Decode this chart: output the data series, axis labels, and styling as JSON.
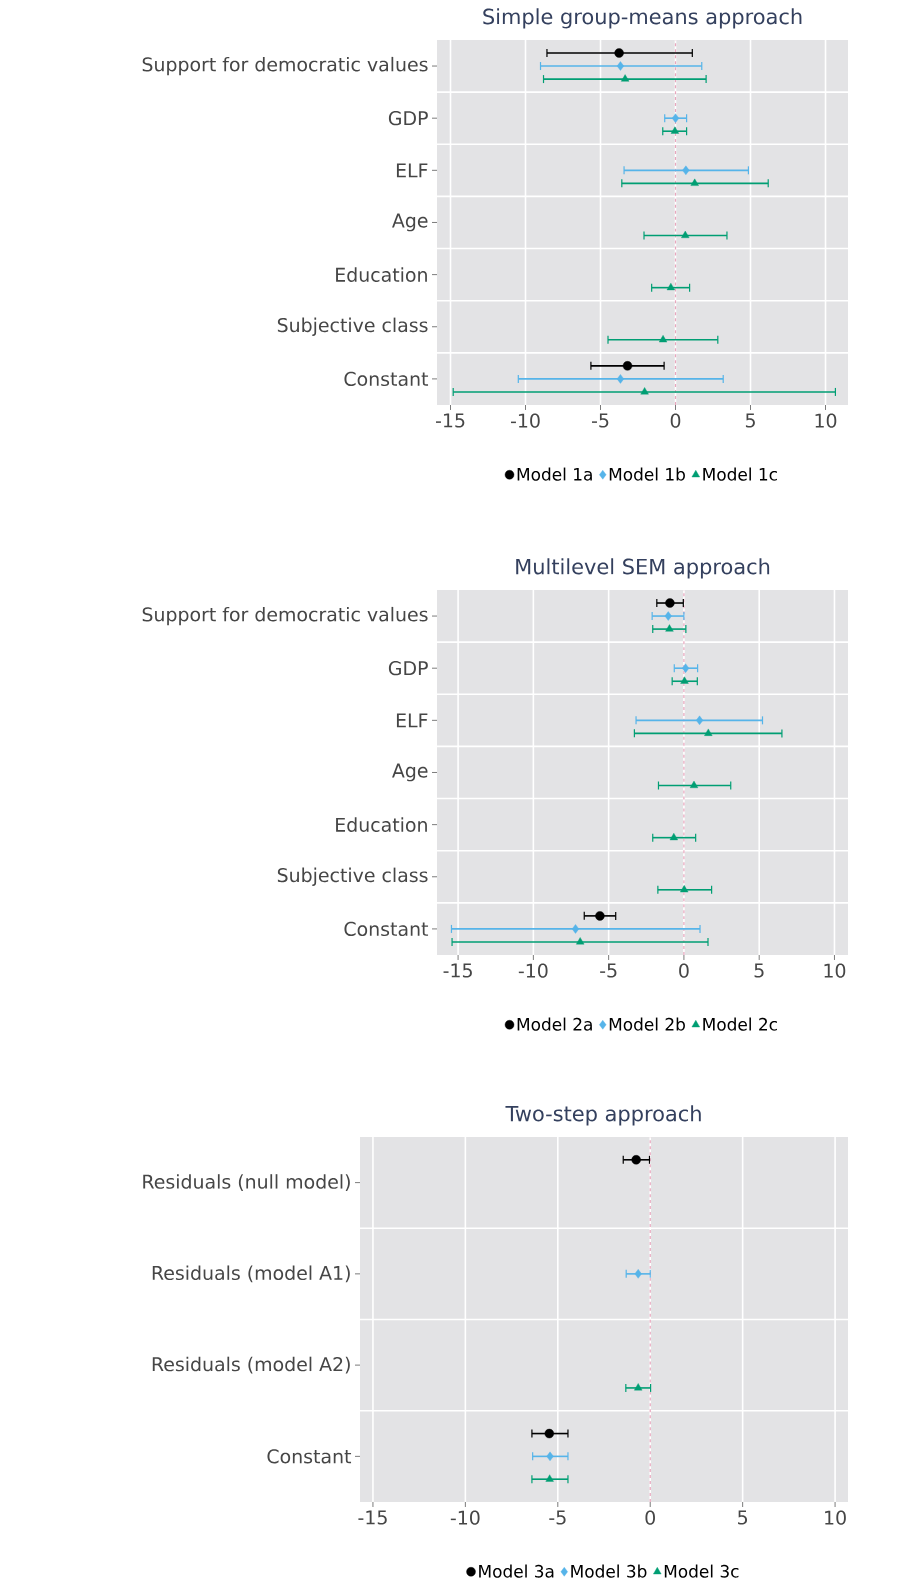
{
  "chart_data": [
    {
      "type": "scatter",
      "orientation": "horizontal",
      "title": "Simple group-means approach",
      "categories": [
        "Support for democratic values",
        "GDP",
        "ELF",
        "Age",
        "Education",
        "Subjective class",
        "Constant"
      ],
      "xlim": [
        -15.9,
        11.5
      ],
      "xticks": [
        -15,
        -10,
        -5,
        0,
        5,
        10
      ],
      "grid": true,
      "legend": "bottom",
      "ref_lines": [
        {
          "axis": "x",
          "value": 0,
          "color": "#e8a6bd",
          "line_style": "dashed"
        }
      ],
      "series": [
        {
          "name": "Model 1a",
          "color": "#000000",
          "marker": "circle",
          "values": [
            -3.76,
            null,
            null,
            null,
            null,
            null,
            -3.2
          ],
          "errors": [
            [
              -8.57,
              1.12
            ],
            null,
            null,
            null,
            null,
            null,
            [
              -5.64,
              -0.76
            ]
          ]
        },
        {
          "name": "Model 1b",
          "color": "#56b4e9",
          "marker": "diamond",
          "values": [
            -3.67,
            0,
            0.69,
            null,
            null,
            null,
            -3.67
          ],
          "errors": [
            [
              -9.0,
              1.75
            ],
            [
              -0.72,
              0.74
            ],
            [
              -3.43,
              4.86
            ],
            null,
            null,
            null,
            [
              -10.48,
              3.18
            ]
          ]
        },
        {
          "name": "Model 1c",
          "color": "#009e73",
          "marker": "triangle",
          "values": [
            -3.36,
            -0.04,
            1.28,
            0.65,
            -0.31,
            -0.83,
            -2.06
          ],
          "errors": [
            [
              -8.8,
              2.04
            ],
            [
              -0.85,
              0.74
            ],
            [
              -3.58,
              6.18
            ],
            [
              -2.1,
              3.43
            ],
            [
              -1.59,
              0.94
            ],
            [
              -4.5,
              2.82
            ],
            [
              -14.82,
              10.66
            ]
          ]
        }
      ]
    },
    {
      "type": "scatter",
      "orientation": "horizontal",
      "title": "Multilevel SEM approach",
      "categories": [
        "Support for democratic values",
        "GDP",
        "ELF",
        "Age",
        "Education",
        "Subjective class",
        "Constant"
      ],
      "xlim": [
        -16.4,
        10.9
      ],
      "xticks": [
        -15,
        -10,
        -5,
        0,
        5,
        10
      ],
      "grid": true,
      "legend": "bottom",
      "ref_lines": [
        {
          "axis": "x",
          "value": 0,
          "color": "#e8a6bd",
          "line_style": "dashed"
        }
      ],
      "series": [
        {
          "name": "Model 2a",
          "color": "#000000",
          "marker": "circle",
          "values": [
            -0.93,
            null,
            null,
            null,
            null,
            null,
            -5.58
          ],
          "errors": [
            [
              -1.8,
              -0.04
            ],
            null,
            null,
            null,
            null,
            null,
            [
              -6.62,
              -4.53
            ]
          ]
        },
        {
          "name": "Model 2b",
          "color": "#56b4e9",
          "marker": "diamond",
          "values": [
            -1.04,
            0.11,
            1.04,
            null,
            null,
            null,
            -7.2
          ],
          "errors": [
            [
              -2.11,
              0
            ],
            [
              -0.64,
              0.91
            ],
            [
              -3.18,
              5.22
            ],
            null,
            null,
            null,
            [
              -15.44,
              1.07
            ]
          ]
        },
        {
          "name": "Model 2c",
          "color": "#009e73",
          "marker": "triangle",
          "values": [
            -0.96,
            0.04,
            1.62,
            0.67,
            -0.67,
            0.02,
            -6.89
          ],
          "errors": [
            [
              -2.07,
              0.13
            ],
            [
              -0.78,
              0.89
            ],
            [
              -3.29,
              6.51
            ],
            [
              -1.69,
              3.11
            ],
            [
              -2.07,
              0.78
            ],
            [
              -1.73,
              1.84
            ],
            [
              -15.4,
              1.6
            ]
          ]
        }
      ]
    },
    {
      "type": "scatter",
      "orientation": "horizontal",
      "title": "Two-step approach",
      "categories": [
        "Residuals (null model)",
        "Residuals (model A1)",
        "Residuals (model A2)",
        "Constant"
      ],
      "xlim": [
        -15.7,
        10.7
      ],
      "xticks": [
        -15,
        -10,
        -5,
        0,
        5,
        10
      ],
      "grid": true,
      "legend": "bottom",
      "ref_lines": [
        {
          "axis": "x",
          "value": 0,
          "color": "#e8a6bd",
          "line_style": "dashed"
        }
      ],
      "series": [
        {
          "name": "Model 3a",
          "color": "#000000",
          "marker": "circle",
          "values": [
            -0.76,
            null,
            null,
            -5.46
          ],
          "errors": [
            [
              -1.46,
              -0.04
            ],
            null,
            null,
            [
              -6.4,
              -4.45
            ]
          ]
        },
        {
          "name": "Model 3b",
          "color": "#56b4e9",
          "marker": "diamond",
          "values": [
            null,
            -0.65,
            null,
            -5.42
          ],
          "errors": [
            null,
            [
              -1.3,
              0
            ],
            null,
            [
              -6.36,
              -4.45
            ]
          ]
        },
        {
          "name": "Model 3c",
          "color": "#009e73",
          "marker": "triangle",
          "values": [
            null,
            null,
            -0.65,
            -5.44
          ],
          "errors": [
            null,
            null,
            [
              -1.32,
              0.02
            ],
            [
              -6.4,
              -4.45
            ]
          ]
        }
      ]
    }
  ]
}
